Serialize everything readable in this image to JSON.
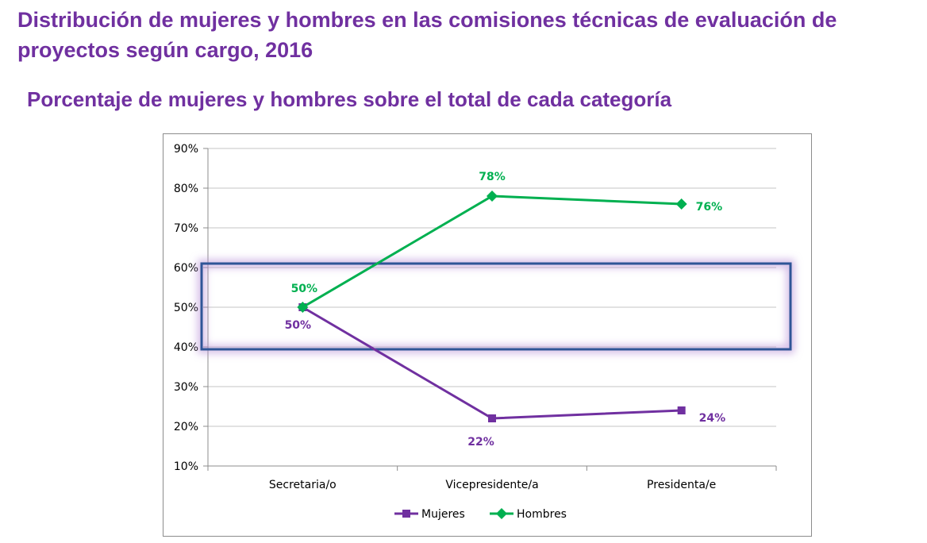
{
  "title": "Distribución de mujeres y hombres en  las comisiones técnicas de evaluación de proyectos según cargo, 2016",
  "subtitle": "Porcentaje de mujeres y hombres sobre el total de cada categoría",
  "chart_data": {
    "type": "line",
    "categories": [
      "Secretaria/o",
      "Vicepresidente/a",
      "Presidenta/e"
    ],
    "series": [
      {
        "name": "Mujeres",
        "values": [
          50,
          22,
          24
        ],
        "labels": [
          "50%",
          "22%",
          "24%"
        ],
        "color": "#7030a0",
        "marker": "square"
      },
      {
        "name": "Hombres",
        "values": [
          50,
          78,
          76
        ],
        "labels": [
          "50%",
          "78%",
          "76%"
        ],
        "color": "#00b050",
        "marker": "diamond"
      }
    ],
    "ylim": [
      10,
      90
    ],
    "yticks": [
      10,
      20,
      30,
      40,
      50,
      60,
      70,
      80,
      90
    ],
    "ytick_labels": [
      "10%",
      "20%",
      "30%",
      "40%",
      "50%",
      "60%",
      "70%",
      "80%",
      "90%"
    ],
    "grid": true,
    "legend_position": "bottom",
    "highlight_range": [
      40,
      60
    ],
    "highlight_color": "#2f5597"
  }
}
